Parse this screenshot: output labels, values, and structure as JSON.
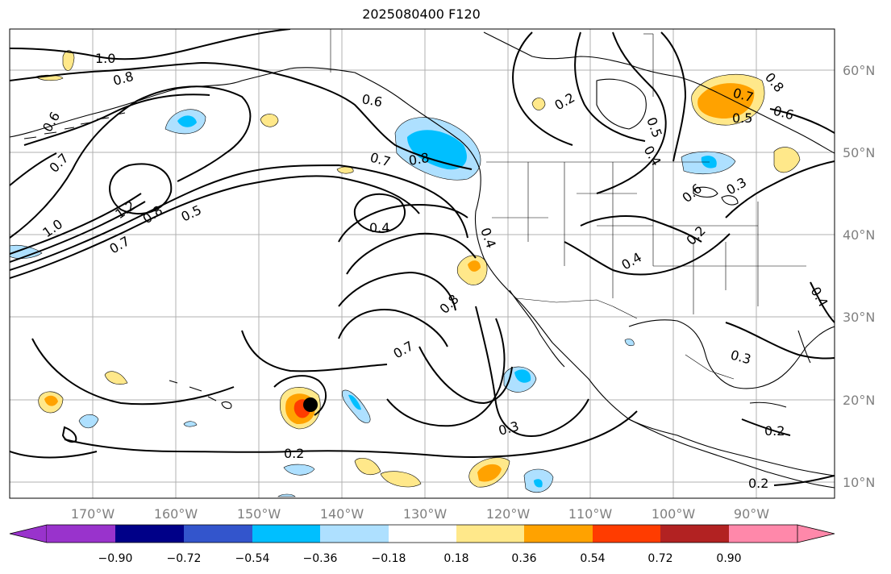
{
  "title": "2025080400 F120",
  "map": {
    "lon_ticks": [
      "170°W",
      "160°W",
      "150°W",
      "140°W",
      "130°W",
      "120°W",
      "110°W",
      "100°W",
      "90°W"
    ],
    "lat_ticks": [
      "60°N",
      "50°N",
      "40°N",
      "30°N",
      "20°N",
      "10°N"
    ],
    "gridlines": true,
    "contour_labels": [
      "1.0",
      "0.8",
      "0.6",
      "0.7",
      "1.2",
      "0.8",
      "0.5",
      "0.7",
      "1.0",
      "0.6",
      "0.7",
      "0.8",
      "0.4",
      "0.4",
      "0.8",
      "0.7",
      "0.2",
      "0.3",
      "0.2",
      "0.5",
      "0.4",
      "0.7",
      "0.6",
      "0.8",
      "0.5",
      "0.3",
      "0.6",
      "0.2",
      "0.4",
      "0.3",
      "0.4",
      "0.2",
      "0.2"
    ],
    "storm_marker": "tropical-cyclone-position",
    "colors": {
      "land_line": "#000000",
      "grid": "#b0b0b0",
      "yellow": "#ffe88a",
      "orange": "#ffa200",
      "red": "#ff3c00",
      "light_blue": "#aee0ff",
      "blue": "#00bfff"
    }
  },
  "colorbar": {
    "tick_labels": [
      "−0.90",
      "−0.72",
      "−0.54",
      "−0.36",
      "−0.18",
      "0.18",
      "0.36",
      "0.54",
      "0.72",
      "0.90"
    ],
    "colors": [
      "#9933cc",
      "#000088",
      "#3355cc",
      "#00bfff",
      "#aee0ff",
      "#ffffff",
      "#ffe88a",
      "#ffa200",
      "#ff3c00",
      "#b22222",
      "#ff88aa",
      "#ff88aa"
    ],
    "extend": "both"
  }
}
